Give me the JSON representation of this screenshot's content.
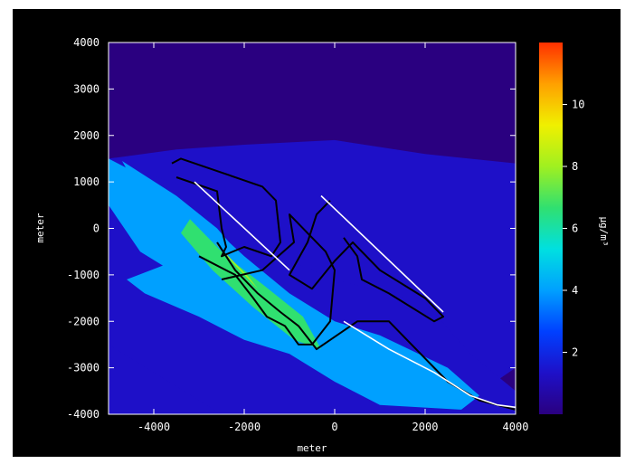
{
  "chart_data": {
    "type": "heatmap",
    "title": "",
    "xlabel": "meter",
    "ylabel": "meter",
    "colorbar_label": "µg/m³",
    "xlim": [
      -5000,
      4000
    ],
    "ylim": [
      -4000,
      4000
    ],
    "x_ticks": [
      -4000,
      -2000,
      0,
      2000,
      4000
    ],
    "y_ticks": [
      -4000,
      -3000,
      -2000,
      -1000,
      0,
      1000,
      2000,
      3000,
      4000
    ],
    "x_tick_labels": [
      "-4000",
      "-2000",
      "0",
      "2000",
      "4000"
    ],
    "y_tick_labels": [
      "-4000",
      "-3000",
      "-2000",
      "-1000",
      "0",
      "1000",
      "2000",
      "3000",
      "4000"
    ],
    "colorbar_range": [
      0,
      12
    ],
    "colorbar_ticks": [
      2,
      4,
      6,
      8,
      10
    ],
    "colorbar_tick_labels": [
      "2",
      "4",
      "6",
      "8",
      "10"
    ],
    "colorscale": [
      "#2a0080",
      "#1e10c8",
      "#0040ff",
      "#00a0ff",
      "#00e0e0",
      "#30e070",
      "#a0f020",
      "#f0f000",
      "#ffa000",
      "#ff3000"
    ],
    "concentration_zones": [
      {
        "level": 0.6,
        "polygon": [
          [
            -5000,
            -4000
          ],
          [
            4000,
            -4000
          ],
          [
            4000,
            4000
          ],
          [
            -5000,
            4000
          ]
        ]
      },
      {
        "level": 1.3,
        "polygon": [
          [
            -5000,
            1500
          ],
          [
            -3500,
            1700
          ],
          [
            -2000,
            1800
          ],
          [
            0,
            1900
          ],
          [
            2000,
            1600
          ],
          [
            4000,
            1400
          ],
          [
            4000,
            -3000
          ],
          [
            2500,
            -4000
          ],
          [
            -5000,
            -4000
          ]
        ]
      },
      {
        "level": 2.2,
        "polygon": [
          [
            -5000,
            1450
          ],
          [
            -3000,
            800
          ],
          [
            -1500,
            -500
          ],
          [
            0,
            -1100
          ],
          [
            2000,
            -1600
          ],
          [
            3000,
            -2700
          ],
          [
            4000,
            -3500
          ],
          [
            4000,
            -4000
          ],
          [
            -2500,
            -4000
          ],
          [
            -5000,
            -2500
          ]
        ]
      },
      {
        "level": 3.6,
        "polygon": [
          [
            -5000,
            1500
          ],
          [
            -4000,
            1000
          ],
          [
            -3000,
            300
          ],
          [
            -2000,
            -600
          ],
          [
            -1000,
            -1400
          ],
          [
            0,
            -2000
          ],
          [
            1000,
            -2300
          ],
          [
            2500,
            -3000
          ],
          [
            3200,
            -3600
          ],
          [
            2800,
            -3900
          ],
          [
            1000,
            -3800
          ],
          [
            0,
            -3300
          ],
          [
            -1000,
            -2700
          ],
          [
            -2000,
            -2400
          ],
          [
            -3000,
            -1900
          ],
          [
            -4200,
            -1400
          ],
          [
            -4600,
            -1100
          ],
          [
            -3800,
            -800
          ],
          [
            -4300,
            -500
          ],
          [
            -5000,
            500
          ]
        ]
      },
      {
        "level": 4.8,
        "polygon": [
          [
            -4700,
            1450
          ],
          [
            -3500,
            700
          ],
          [
            -2600,
            0
          ],
          [
            -1800,
            -900
          ],
          [
            -800,
            -1700
          ],
          [
            300,
            -2300
          ],
          [
            700,
            -2800
          ],
          [
            -300,
            -2700
          ],
          [
            -1500,
            -2100
          ],
          [
            -2500,
            -1300
          ],
          [
            -3500,
            -200
          ],
          [
            -4500,
            1100
          ]
        ]
      },
      {
        "level": 6.2,
        "polygon": [
          [
            -3200,
            200
          ],
          [
            -2400,
            -600
          ],
          [
            -1600,
            -1200
          ],
          [
            -700,
            -1900
          ],
          [
            -300,
            -2600
          ],
          [
            -900,
            -2400
          ],
          [
            -1800,
            -1700
          ],
          [
            -2700,
            -900
          ],
          [
            -3400,
            -100
          ]
        ]
      },
      {
        "level": 7.6,
        "polygon": [
          [
            -2700,
            -250
          ],
          [
            -2200,
            -800
          ],
          [
            -1700,
            -1300
          ],
          [
            -1900,
            -1050
          ],
          [
            -2500,
            -450
          ]
        ]
      }
    ],
    "outlines": [
      {
        "color": "#000000",
        "points": [
          [
            -3600,
            1400
          ],
          [
            -3400,
            1500
          ],
          [
            -2500,
            1200
          ],
          [
            -1600,
            900
          ],
          [
            -1300,
            600
          ],
          [
            -1200,
            -300
          ],
          [
            -1400,
            -600
          ],
          [
            -2000,
            -400
          ],
          [
            -2500,
            -600
          ],
          [
            -2400,
            -400
          ],
          [
            -2500,
            0
          ],
          [
            -2600,
            800
          ],
          [
            -3500,
            1100
          ]
        ]
      },
      {
        "color": "#000000",
        "points": [
          [
            -3000,
            -600
          ],
          [
            -2200,
            -1000
          ],
          [
            -1800,
            -1500
          ],
          [
            -1500,
            -1900
          ],
          [
            -1100,
            -2100
          ],
          [
            -800,
            -2500
          ],
          [
            -500,
            -2500
          ],
          [
            -100,
            -2000
          ],
          [
            0,
            -900
          ],
          [
            -200,
            -500
          ],
          [
            -1000,
            300
          ],
          [
            -900,
            -300
          ],
          [
            -1600,
            -900
          ],
          [
            -2500,
            -1100
          ]
        ]
      },
      {
        "color": "#000000",
        "points": [
          [
            -100,
            600
          ],
          [
            -400,
            300
          ],
          [
            -600,
            -300
          ],
          [
            -1000,
            -1000
          ],
          [
            -500,
            -1300
          ],
          [
            0,
            -700
          ],
          [
            400,
            -300
          ],
          [
            1000,
            -900
          ],
          [
            2000,
            -1500
          ],
          [
            2400,
            -1900
          ],
          [
            2200,
            -2000
          ],
          [
            1200,
            -1400
          ],
          [
            600,
            -1100
          ],
          [
            500,
            -600
          ],
          [
            200,
            -200
          ]
        ]
      },
      {
        "color": "#000000",
        "points": [
          [
            -2600,
            -300
          ],
          [
            -2200,
            -900
          ],
          [
            -1700,
            -1400
          ],
          [
            -1200,
            -1800
          ],
          [
            -800,
            -2100
          ],
          [
            -400,
            -2600
          ],
          [
            500,
            -2000
          ],
          [
            1200,
            -2000
          ],
          [
            1800,
            -2600
          ],
          [
            2500,
            -3300
          ],
          [
            3200,
            -3700
          ],
          [
            4000,
            -3900
          ]
        ]
      },
      {
        "color": "#ffffff",
        "points": [
          [
            -3100,
            1000
          ],
          [
            -1000,
            -900
          ]
        ]
      },
      {
        "color": "#ffffff",
        "points": [
          [
            -300,
            700
          ],
          [
            2400,
            -1800
          ]
        ]
      },
      {
        "color": "#ffffff",
        "points": [
          [
            200,
            -2000
          ],
          [
            1200,
            -2600
          ],
          [
            2200,
            -3100
          ],
          [
            3000,
            -3600
          ],
          [
            3600,
            -3800
          ],
          [
            4000,
            -3850
          ]
        ]
      }
    ],
    "grid": false
  }
}
